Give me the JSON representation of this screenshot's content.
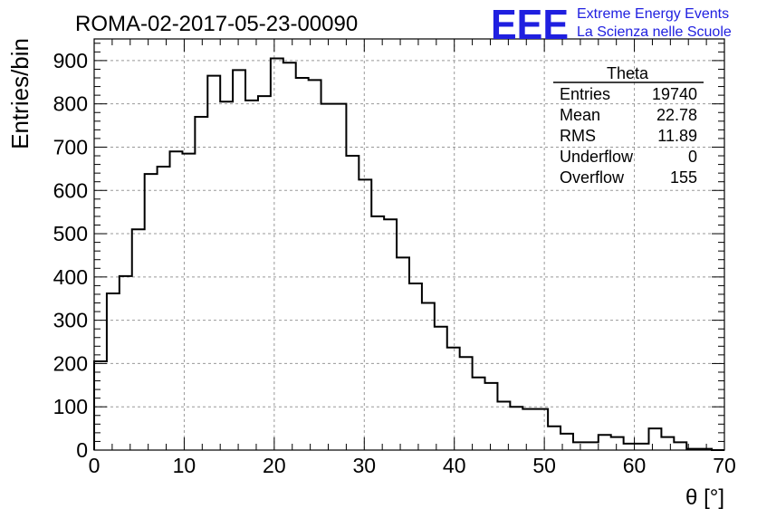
{
  "header": {
    "run_title": "ROMA-02-2017-05-23-00090",
    "logo_text": "EEE",
    "logo_line1": "Extreme Energy Events",
    "logo_line2": "La Scienza nelle Scuole"
  },
  "stats_box": {
    "title": "Theta",
    "rows": [
      {
        "label": "Entries",
        "value": "19740"
      },
      {
        "label": "Mean",
        "value": "22.78"
      },
      {
        "label": "RMS",
        "value": "11.89"
      },
      {
        "label": "Underflow",
        "value": "0"
      },
      {
        "label": "Overflow",
        "value": "155"
      }
    ]
  },
  "colors": {
    "logo": "#1f1fe0",
    "line": "#000000",
    "grid": "#999999"
  },
  "chart_data": {
    "type": "histogram",
    "title": "ROMA-02-2017-05-23-00090",
    "xlabel": "θ [°]",
    "ylabel": "Entries/bin",
    "xlim": [
      0,
      70
    ],
    "ylim": [
      0,
      950
    ],
    "bin_width": 1.4,
    "x_ticks": [
      0,
      10,
      20,
      30,
      40,
      50,
      60,
      70
    ],
    "y_ticks": [
      0,
      100,
      200,
      300,
      400,
      500,
      600,
      700,
      800,
      900
    ],
    "grid": true,
    "legend": "top-right stats box",
    "values": [
      205,
      362,
      402,
      510,
      638,
      655,
      690,
      685,
      770,
      865,
      805,
      878,
      808,
      818,
      905,
      895,
      860,
      855,
      800,
      800,
      680,
      625,
      540,
      533,
      445,
      385,
      340,
      285,
      237,
      215,
      168,
      155,
      112,
      100,
      95,
      95,
      55,
      38,
      18,
      18,
      35,
      30,
      15,
      15,
      50,
      30,
      18,
      3,
      3,
      0
    ]
  }
}
